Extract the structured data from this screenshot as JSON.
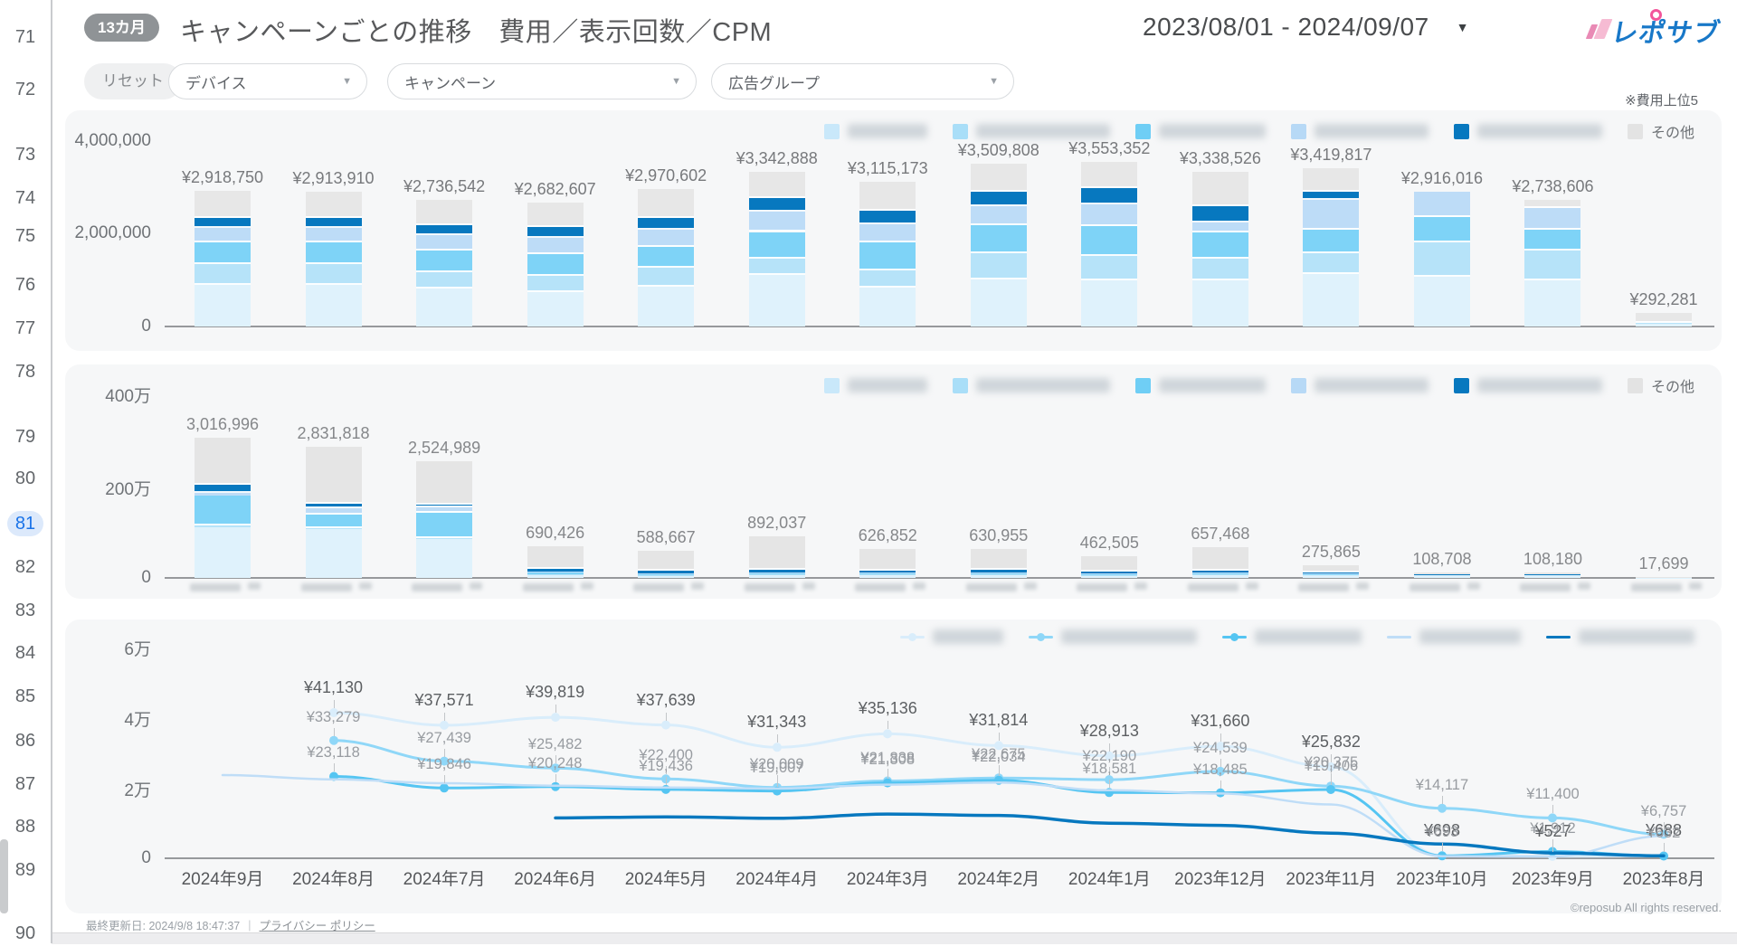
{
  "sidebar": {
    "pages": [
      "71",
      "72",
      "73",
      "74",
      "75",
      "76",
      "77",
      "78",
      "79",
      "80",
      "81",
      "82",
      "83",
      "84",
      "85",
      "86",
      "87",
      "88",
      "89",
      "90"
    ],
    "active_page": "81"
  },
  "header": {
    "badge": "13カ月",
    "title": "キャンペーンごとの推移　費用／表示回数／CPM",
    "date_range": "2023/08/01 - 2024/09/07",
    "caret_icon": "▼",
    "logo_text": "レポサブ"
  },
  "filters": {
    "reset": "リセット",
    "device": "デバイス",
    "campaign": "キャンペーン",
    "ad_group": "広告グループ",
    "caret_icon": "▼",
    "note": "※費用上位5"
  },
  "legend": {
    "others": "その他",
    "blurred_series_count": 5
  },
  "months": [
    "2024年9月",
    "2024年8月",
    "2024年7月",
    "2024年6月",
    "2024年5月",
    "2024年4月",
    "2024年3月",
    "2024年2月",
    "2024年1月",
    "2023年12月",
    "2023年11月",
    "2023年10月",
    "2023年9月",
    "2023年8月"
  ],
  "colors": {
    "accent_blue": "#1A73E8",
    "dark_series_blue": "#0778BF",
    "card_bg": "#F6F7F8",
    "logo_blue": "#1878C8",
    "logo_pink": "#F2569B"
  },
  "chart_data": [
    {
      "id": "cost",
      "type": "stacked-bar",
      "metric": "費用",
      "y_ticks": [
        "4,000,000",
        "2,000,000",
        "0"
      ],
      "ylim": [
        0,
        4000000
      ],
      "categories": [
        "2024年9月",
        "2024年8月",
        "2024年7月",
        "2024年6月",
        "2024年5月",
        "2024年4月",
        "2024年3月",
        "2024年2月",
        "2024年1月",
        "2023年12月",
        "2023年11月",
        "2023年10月",
        "2023年9月",
        "2023年8月"
      ],
      "values": [
        2918750,
        2913910,
        2736542,
        2682607,
        2970602,
        3342888,
        3115173,
        3509808,
        3553352,
        3338526,
        3419817,
        2916016,
        2738606,
        292281
      ],
      "bar_labels": [
        "¥2,918,750",
        "¥2,913,910",
        "¥2,736,542",
        "¥2,682,607",
        "¥2,970,602",
        "¥3,342,888",
        "¥3,115,173",
        "¥3,509,808",
        "¥3,553,352",
        "¥3,338,526",
        "¥3,419,817",
        "¥2,916,016",
        "¥2,738,606",
        "¥292,281"
      ],
      "segment_colors": [
        "#DFF2FC",
        "#B6E3F9",
        "#7ED3F7",
        "#BDDCF7",
        "#0778BF",
        "#E7E7E7"
      ],
      "legend_colors": [
        "#C9E8FA",
        "#A9DEF8",
        "#6FCEF5",
        "#B7D9F6",
        "#0778BF",
        "#E3E3E3"
      ],
      "segments": [
        [
          0.31,
          0.15,
          0.16,
          0.11,
          0.075,
          0.195
        ],
        [
          0.31,
          0.15,
          0.16,
          0.11,
          0.075,
          0.195
        ],
        [
          0.3,
          0.13,
          0.17,
          0.12,
          0.08,
          0.2
        ],
        [
          0.28,
          0.13,
          0.17,
          0.13,
          0.09,
          0.2
        ],
        [
          0.29,
          0.14,
          0.15,
          0.12,
          0.09,
          0.21
        ],
        [
          0.33,
          0.11,
          0.17,
          0.13,
          0.09,
          0.17
        ],
        [
          0.27,
          0.12,
          0.19,
          0.13,
          0.09,
          0.2
        ],
        [
          0.29,
          0.16,
          0.17,
          0.12,
          0.09,
          0.17
        ],
        [
          0.28,
          0.15,
          0.18,
          0.13,
          0.1,
          0.16
        ],
        [
          0.3,
          0.14,
          0.17,
          0.06,
          0.11,
          0.22
        ],
        [
          0.33,
          0.13,
          0.15,
          0.19,
          0.05,
          0.15
        ],
        [
          0.37,
          0.25,
          0.19,
          0.19,
          0,
          0
        ],
        [
          0.36,
          0.24,
          0.16,
          0.17,
          0,
          0.07
        ],
        [
          0.18,
          0.12,
          0,
          0,
          0,
          0.7
        ]
      ]
    },
    {
      "id": "impressions",
      "type": "stacked-bar",
      "metric": "表示回数",
      "y_ticks": [
        "400万",
        "200万",
        "0"
      ],
      "ylim": [
        0,
        4000000
      ],
      "categories": [
        "2024年9月",
        "2024年8月",
        "2024年7月",
        "2024年6月",
        "2024年5月",
        "2024年4月",
        "2024年3月",
        "2024年2月",
        "2024年1月",
        "2023年12月",
        "2023年11月",
        "2023年10月",
        "2023年9月",
        "2023年8月"
      ],
      "values": [
        3016996,
        2831818,
        2524989,
        690426,
        588667,
        892037,
        626852,
        630955,
        462505,
        657468,
        275865,
        108708,
        108180,
        17699
      ],
      "bar_labels": [
        "3,016,996",
        "2,831,818",
        "2,524,989",
        "690,426",
        "588,667",
        "892,037",
        "626,852",
        "630,955",
        "462,505",
        "657,468",
        "275,865",
        "108,708",
        "108,180",
        "17,699"
      ],
      "segment_colors": [
        "#DFF2FC",
        "#B6E3F9",
        "#7ED3F7",
        "#BDDCF7",
        "#0778BF",
        "#E5E5E5"
      ],
      "legend_colors": [
        "#C9E8FA",
        "#A9DEF8",
        "#6FCEF5",
        "#B7D9F6",
        "#0778BF",
        "#E3E3E3"
      ],
      "segments": [
        [
          0.36,
          0.015,
          0.215,
          0.015,
          0.06,
          0.335
        ],
        [
          0.37,
          0.01,
          0.1,
          0.05,
          0.035,
          0.435
        ],
        [
          0.33,
          0.01,
          0.22,
          0.04,
          0.025,
          0.375
        ],
        [
          0.1,
          0.02,
          0.06,
          0.02,
          0.07,
          0.73
        ],
        [
          0.09,
          0.02,
          0.05,
          0.02,
          0.07,
          0.75
        ],
        [
          0.07,
          0.015,
          0.04,
          0.015,
          0.05,
          0.81
        ],
        [
          0.09,
          0.02,
          0.05,
          0.02,
          0.06,
          0.76
        ],
        [
          0.1,
          0.02,
          0.06,
          0.02,
          0.07,
          0.73
        ],
        [
          0.11,
          0.02,
          0.06,
          0.02,
          0.08,
          0.71
        ],
        [
          0.09,
          0.02,
          0.05,
          0.02,
          0.07,
          0.75
        ],
        [
          0.22,
          0.03,
          0.06,
          0.03,
          0.06,
          0.6
        ],
        [
          0.65,
          0.1,
          0,
          0,
          0.05,
          0.2
        ],
        [
          0.65,
          0.1,
          0,
          0,
          0.05,
          0.2
        ],
        [
          0.5,
          0,
          0,
          0,
          0,
          0.5
        ]
      ]
    },
    {
      "id": "cpm",
      "type": "line",
      "metric": "CPM",
      "y_ticks": [
        "6万",
        "4万",
        "2万",
        "0"
      ],
      "ylim": [
        0,
        60000
      ],
      "categories": [
        "2024年9月",
        "2024年8月",
        "2024年7月",
        "2024年6月",
        "2024年5月",
        "2024年4月",
        "2024年3月",
        "2024年2月",
        "2024年1月",
        "2023年12月",
        "2023年11月",
        "2023年10月",
        "2023年9月",
        "2023年8月"
      ],
      "series": [
        {
          "name": "series-1-blurred",
          "color": "#D9EDFB",
          "marker": true,
          "width": 3,
          "values": [
            null,
            41130,
            37571,
            39819,
            37639,
            31343,
            35136,
            31814,
            28913,
            31660,
            25832,
            698,
            527,
            688
          ],
          "labels": [
            null,
            "¥41,130",
            "¥37,571",
            "¥39,819",
            "¥37,639",
            "¥31,343",
            "¥35,136",
            "¥31,814",
            "¥28,913",
            "¥31,660",
            "¥25,832",
            "¥698",
            "¥527",
            "¥688"
          ],
          "label_style": "dark"
        },
        {
          "name": "series-2-blurred",
          "color": "#8FD7F8",
          "marker": true,
          "width": 3,
          "values": [
            null,
            33279,
            27439,
            25482,
            22400,
            20009,
            21838,
            22675,
            22190,
            24539,
            20375,
            14117,
            11400,
            6757
          ],
          "labels": [
            null,
            "¥33,279",
            "¥27,439",
            "¥25,482",
            "¥22,400",
            "¥20,009",
            "¥21,838",
            "¥22,675",
            "¥22,190",
            "¥24,539",
            "¥20,375",
            "¥14,117",
            "¥11,400",
            "¥6,757"
          ],
          "label_style": "gray"
        },
        {
          "name": "series-3-blurred",
          "color": "#55C5F2",
          "marker": true,
          "width": 3,
          "values": [
            null,
            23118,
            19846,
            20248,
            19436,
            19007,
            21308,
            22034,
            18581,
            18485,
            19406,
            693,
            1912,
            632
          ],
          "labels": [
            null,
            "¥23,118",
            "¥19,846",
            "¥20,248",
            "¥19,436",
            "¥19,007",
            "¥21,308",
            "¥22,034",
            "¥18,581",
            "¥18,485",
            "¥19,406",
            "¥693",
            "¥1,912",
            "¥632"
          ],
          "label_style": "gray"
        },
        {
          "name": "series-4-blurred",
          "color": "#BFDDF7",
          "marker": false,
          "width": 2.5,
          "values": [
            23500,
            22300,
            21200,
            20500,
            20000,
            19700,
            20800,
            21400,
            19200,
            18300,
            15200,
            600,
            500,
            6300
          ],
          "labels": [
            null,
            null,
            null,
            null,
            null,
            null,
            null,
            null,
            null,
            null,
            null,
            null,
            null,
            null
          ],
          "label_style": "gray"
        },
        {
          "name": "series-5-blurred",
          "color": "#0778BF",
          "marker": false,
          "width": 3.5,
          "values": [
            null,
            null,
            null,
            11400,
            11700,
            11300,
            12500,
            12100,
            9900,
            9300,
            7100,
            4000,
            1500,
            700
          ],
          "labels": [
            null,
            null,
            null,
            null,
            null,
            null,
            null,
            null,
            null,
            null,
            null,
            null,
            null,
            null
          ],
          "label_style": "gray"
        }
      ]
    }
  ],
  "footer": {
    "last_updated": "最終更新日: 2024/9/8 18:47:37",
    "separator": "|",
    "privacy": "プライバシー ポリシー",
    "copyright": "©reposub All rights reserved."
  }
}
